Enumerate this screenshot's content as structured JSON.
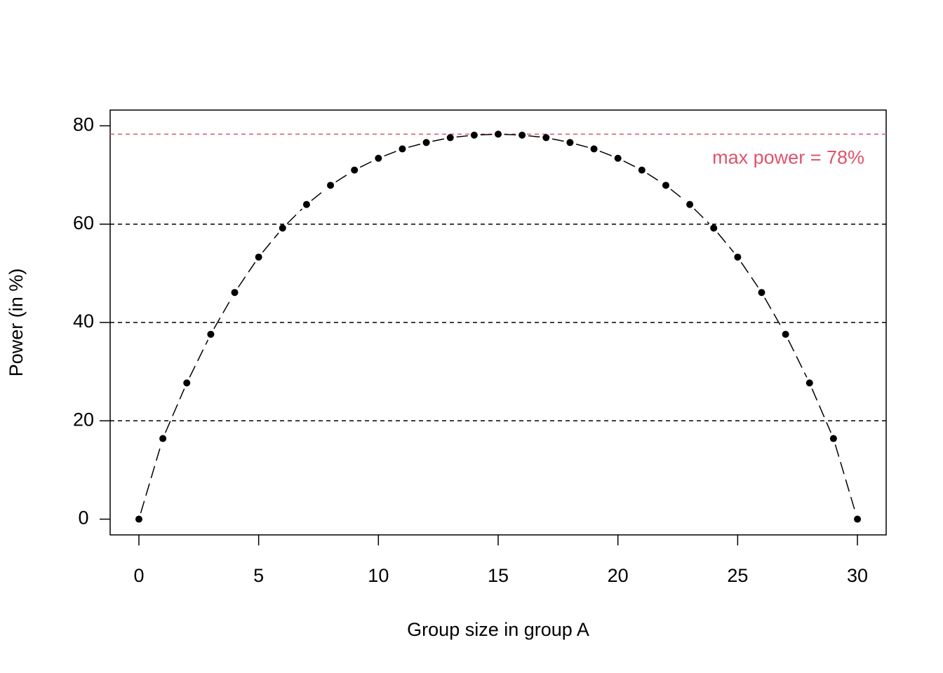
{
  "chart_data": {
    "type": "line",
    "x_label": "Group size in group A",
    "y_label": "Power (in %)",
    "x": [
      0,
      1,
      2,
      3,
      4,
      5,
      6,
      7,
      8,
      9,
      10,
      11,
      12,
      13,
      14,
      15,
      16,
      17,
      18,
      19,
      20,
      21,
      22,
      23,
      24,
      25,
      26,
      27,
      28,
      29,
      30
    ],
    "series": [
      {
        "color": "#000000",
        "values": [
          0,
          16.4,
          27.7,
          37.6,
          46.1,
          53.3,
          59.2,
          64.0,
          67.9,
          71.0,
          73.4,
          75.3,
          76.6,
          77.6,
          78.1,
          78.3,
          78.1,
          77.6,
          76.6,
          75.3,
          73.4,
          71.0,
          67.9,
          64.0,
          59.2,
          53.3,
          46.1,
          37.6,
          27.7,
          16.4,
          0
        ]
      }
    ],
    "xlim": [
      -1.2,
      31.2
    ],
    "ylim": [
      -3.2,
      83.2
    ],
    "xticks": [
      0,
      5,
      10,
      15,
      20,
      25,
      30
    ],
    "yticks": [
      0,
      20,
      40,
      60,
      80
    ],
    "hlines": [
      20,
      40,
      60
    ],
    "hline_color": "#000000",
    "max_line": 78.3,
    "max_color": "#DF536B",
    "annotation": "max power = 78%"
  }
}
